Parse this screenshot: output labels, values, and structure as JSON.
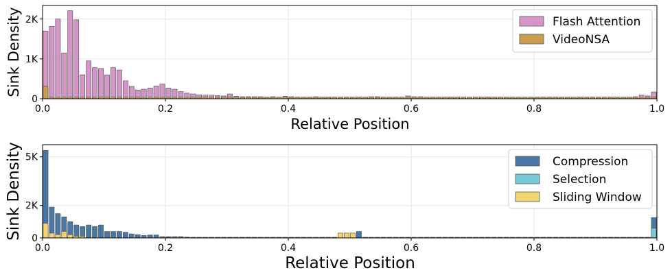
{
  "chart_data": [
    {
      "type": "bar",
      "xlabel": "Relative Position",
      "ylabel": "Sink Density",
      "xlim": [
        0,
        1
      ],
      "ylim": [
        0,
        2340
      ],
      "bin_width": 0.01,
      "xticks": [
        {
          "value": 0,
          "label": "0.0"
        },
        {
          "value": 0.2,
          "label": "0.2"
        },
        {
          "value": 0.4,
          "label": "0.4"
        },
        {
          "value": 0.6,
          "label": "0.6"
        },
        {
          "value": 0.8,
          "label": "0.8"
        },
        {
          "value": 1.0,
          "label": "1.0"
        }
      ],
      "yticks": [
        {
          "value": 0,
          "label": "0"
        },
        {
          "value": 1000,
          "label": "1K"
        },
        {
          "value": 2000,
          "label": "2K"
        }
      ],
      "legend": "top-right",
      "series": [
        {
          "name": "Flash Attention",
          "color": "#d595c8",
          "values": [
            1700,
            1820,
            2000,
            1150,
            2210,
            1980,
            600,
            950,
            780,
            760,
            600,
            780,
            720,
            450,
            310,
            220,
            240,
            270,
            320,
            370,
            270,
            240,
            180,
            140,
            120,
            100,
            90,
            90,
            80,
            70,
            120,
            60,
            50,
            50,
            50,
            50,
            40,
            50,
            40,
            60,
            50,
            40,
            40,
            40,
            50,
            40,
            40,
            40,
            40,
            40,
            40,
            40,
            40,
            50,
            50,
            40,
            40,
            40,
            40,
            70,
            50,
            50,
            40,
            40,
            40,
            40,
            40,
            40,
            40,
            40,
            40,
            40,
            40,
            40,
            40,
            40,
            40,
            40,
            40,
            40,
            40,
            40,
            40,
            40,
            40,
            40,
            40,
            40,
            40,
            40,
            40,
            40,
            40,
            40,
            40,
            40,
            50,
            90,
            70,
            170
          ]
        },
        {
          "name": "VideoNSA",
          "color": "#c99e4e",
          "values": [
            310,
            40,
            40,
            40,
            40,
            40,
            40,
            40,
            40,
            40,
            40,
            40,
            40,
            40,
            40,
            40,
            40,
            40,
            40,
            40,
            40,
            40,
            40,
            40,
            40,
            40,
            40,
            40,
            40,
            40,
            40,
            40,
            40,
            40,
            40,
            40,
            40,
            40,
            40,
            40,
            40,
            40,
            40,
            40,
            40,
            40,
            40,
            40,
            40,
            40,
            40,
            40,
            40,
            40,
            40,
            40,
            40,
            40,
            40,
            40,
            40,
            40,
            40,
            40,
            40,
            40,
            40,
            40,
            40,
            40,
            40,
            40,
            40,
            40,
            40,
            40,
            40,
            40,
            40,
            40,
            40,
            40,
            40,
            40,
            40,
            40,
            40,
            40,
            40,
            40,
            40,
            40,
            40,
            40,
            40,
            40,
            40,
            40,
            40,
            40
          ]
        }
      ]
    },
    {
      "type": "bar",
      "xlabel": "Relative Position",
      "ylabel": "Sink Density",
      "xlim": [
        0,
        1
      ],
      "ylim": [
        0,
        5750
      ],
      "bin_width": 0.01,
      "xticks": [
        {
          "value": 0,
          "label": "0.0"
        },
        {
          "value": 0.2,
          "label": "0.2"
        },
        {
          "value": 0.4,
          "label": "0.4"
        },
        {
          "value": 0.6,
          "label": "0.6"
        },
        {
          "value": 0.8,
          "label": "0.8"
        },
        {
          "value": 1.0,
          "label": "1.0"
        }
      ],
      "yticks": [
        {
          "value": 0,
          "label": "0"
        },
        {
          "value": 2000,
          "label": "2K"
        },
        {
          "value": 5000,
          "label": "5K"
        }
      ],
      "legend": "top-right",
      "series": [
        {
          "name": "Compression",
          "color": "#4b77a7",
          "values": [
            5400,
            1900,
            1500,
            1300,
            1000,
            800,
            700,
            800,
            700,
            800,
            400,
            400,
            400,
            350,
            250,
            200,
            150,
            180,
            180,
            80,
            80,
            80,
            80,
            50,
            40,
            40,
            40,
            40,
            40,
            40,
            40,
            40,
            40,
            40,
            40,
            40,
            40,
            40,
            40,
            40,
            40,
            40,
            40,
            40,
            40,
            40,
            40,
            40,
            40,
            40,
            60,
            400,
            40,
            40,
            40,
            40,
            40,
            40,
            40,
            40,
            40,
            40,
            40,
            40,
            40,
            40,
            40,
            40,
            40,
            40,
            40,
            40,
            40,
            40,
            40,
            40,
            40,
            40,
            40,
            40,
            40,
            40,
            40,
            40,
            40,
            40,
            40,
            40,
            40,
            40,
            40,
            40,
            40,
            40,
            40,
            40,
            40,
            40,
            40,
            1250
          ]
        },
        {
          "name": "Selection",
          "color": "#76c9d5",
          "values": [
            0,
            0,
            0,
            0,
            0,
            0,
            0,
            0,
            0,
            0,
            0,
            0,
            0,
            0,
            0,
            0,
            0,
            0,
            0,
            0,
            0,
            0,
            0,
            0,
            0,
            0,
            0,
            0,
            0,
            0,
            0,
            0,
            0,
            0,
            0,
            0,
            0,
            0,
            0,
            0,
            0,
            0,
            0,
            0,
            0,
            0,
            0,
            0,
            0,
            0,
            0,
            0,
            0,
            0,
            0,
            0,
            0,
            0,
            0,
            0,
            0,
            0,
            0,
            0,
            0,
            0,
            0,
            0,
            0,
            0,
            0,
            0,
            0,
            0,
            0,
            0,
            0,
            0,
            0,
            0,
            0,
            0,
            0,
            0,
            0,
            0,
            0,
            0,
            0,
            0,
            0,
            0,
            0,
            0,
            0,
            0,
            0,
            0,
            0,
            600
          ]
        },
        {
          "name": "Sliding Window",
          "color": "#f3d46f",
          "values": [
            900,
            300,
            200,
            400,
            200,
            100,
            100,
            0,
            0,
            0,
            0,
            0,
            0,
            0,
            0,
            0,
            0,
            0,
            0,
            0,
            0,
            0,
            0,
            0,
            0,
            0,
            0,
            0,
            0,
            0,
            0,
            0,
            0,
            0,
            0,
            0,
            0,
            0,
            0,
            0,
            0,
            0,
            0,
            0,
            0,
            0,
            0,
            0,
            300,
            300,
            300,
            0,
            0,
            0,
            0,
            0,
            0,
            0,
            0,
            0,
            0,
            0,
            0,
            0,
            0,
            0,
            0,
            0,
            0,
            0,
            0,
            0,
            0,
            0,
            0,
            0,
            0,
            0,
            0,
            0,
            0,
            0,
            0,
            0,
            0,
            0,
            0,
            0,
            0,
            0,
            0,
            0,
            0,
            0,
            0,
            0,
            0,
            0,
            0,
            0
          ]
        }
      ]
    }
  ]
}
